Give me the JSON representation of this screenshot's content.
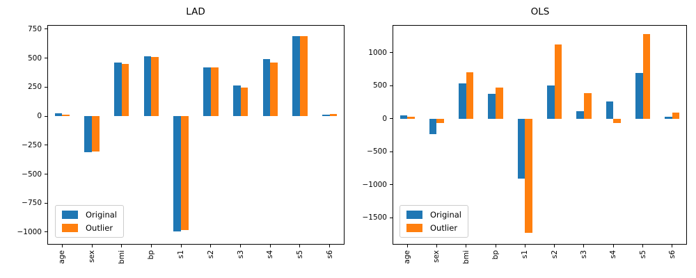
{
  "legend": {
    "items": [
      {
        "label": "Original",
        "color": "#1f77b4"
      },
      {
        "label": "Outlier",
        "color": "#ff7f0e"
      }
    ]
  },
  "colors": {
    "original_series": "#1f77b4",
    "outlier_series": "#ff7f0e",
    "axis": "#000000",
    "background": "#ffffff",
    "legend_border": "#cccccc"
  },
  "chart_data": [
    {
      "type": "bar",
      "title": "LAD",
      "categories": [
        "age",
        "sex",
        "bmi",
        "bp",
        "s1",
        "s2",
        "s3",
        "s4",
        "s5",
        "s6"
      ],
      "series": [
        {
          "name": "Original",
          "color": "#1f77b4",
          "values": [
            22,
            -310,
            460,
            515,
            -995,
            418,
            263,
            492,
            688,
            12
          ]
        },
        {
          "name": "Outlier",
          "color": "#ff7f0e",
          "values": [
            14,
            -305,
            448,
            512,
            -980,
            418,
            246,
            460,
            688,
            18
          ]
        }
      ],
      "ylim": [
        -1108,
        785
      ],
      "yticks": [
        750,
        500,
        250,
        0,
        -250,
        -500,
        -750,
        -1000
      ],
      "grid": false,
      "legend_position": "lower left"
    },
    {
      "type": "bar",
      "title": "OLS",
      "categories": [
        "age",
        "sex",
        "bmi",
        "bp",
        "s1",
        "s2",
        "s3",
        "s4",
        "s5",
        "s6"
      ],
      "series": [
        {
          "name": "Original",
          "color": "#1f77b4",
          "values": [
            55,
            -230,
            535,
            380,
            -910,
            510,
            115,
            265,
            690,
            32
          ]
        },
        {
          "name": "Outlier",
          "color": "#ff7f0e",
          "values": [
            30,
            -60,
            710,
            470,
            -1730,
            1130,
            390,
            -60,
            1285,
            92
          ]
        }
      ],
      "ylim": [
        -1906,
        1421
      ],
      "yticks": [
        1000,
        500,
        0,
        -500,
        -1000,
        -1500
      ],
      "grid": false,
      "legend_position": "lower left"
    }
  ]
}
